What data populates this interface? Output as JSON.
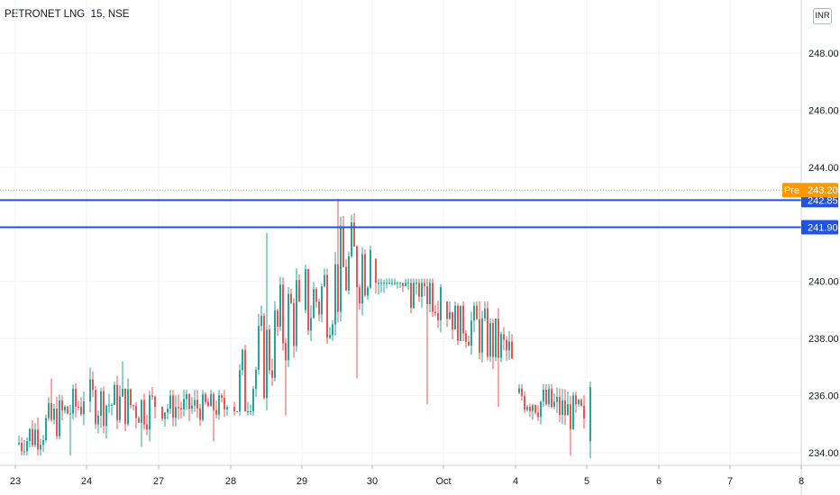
{
  "header": {
    "title": "PETRONET LNG, 15, NSE",
    "currency_button": "INR"
  },
  "chart_data": {
    "type": "candlestick",
    "symbol": "PETRONET LNG",
    "interval": "15",
    "exchange": "NSE",
    "y_ticks": [
      "248.00",
      "246.00",
      "244.00",
      "240.00",
      "238.00",
      "236.00",
      "234.00"
    ],
    "y_range": [
      233.5,
      249.0
    ],
    "x_ticks": [
      "23",
      "24",
      "27",
      "28",
      "29",
      "30",
      "Oct",
      "4",
      "5",
      "6",
      "7",
      "8"
    ],
    "price_labels": {
      "premarket": {
        "tag": "Pre",
        "value": "243.20"
      },
      "level_1": {
        "value": "242.85"
      },
      "level_2": {
        "value": "241.90"
      }
    },
    "horizontal_lines": [
      242.85,
      241.9
    ],
    "colors": {
      "up": "#26a69a",
      "down": "#ef5350",
      "level_line": "#1e53e5",
      "premarket": "#ff9800",
      "grid": "#f0f3fa"
    },
    "sessions": [
      {
        "label": "23",
        "open": 234.3,
        "close": 235.8,
        "high": 236.6,
        "low": 233.9
      },
      {
        "label": "24",
        "open": 235.8,
        "close": 235.6,
        "high": 237.2,
        "low": 234.2
      },
      {
        "label": "27",
        "open": 235.6,
        "close": 235.6,
        "high": 236.2,
        "low": 234.4
      },
      {
        "label": "28",
        "open": 235.6,
        "close": 239.3,
        "high": 241.7,
        "low": 235.3
      },
      {
        "label": "29",
        "open": 239.0,
        "close": 241.1,
        "high": 242.9,
        "low": 236.6
      },
      {
        "label": "30",
        "open": 240.8,
        "close": 239.8,
        "high": 240.1,
        "low": 235.7
      },
      {
        "label": "Oct",
        "open": 239.3,
        "close": 237.3,
        "high": 239.3,
        "low": 235.6
      },
      {
        "label": "4",
        "open": 236.1,
        "close": 235.2,
        "high": 236.4,
        "low": 233.9
      },
      {
        "label": "5",
        "open": 234.4,
        "close": 236.3,
        "high": 236.5,
        "low": 233.8
      }
    ],
    "xlabel": "",
    "ylabel": ""
  }
}
